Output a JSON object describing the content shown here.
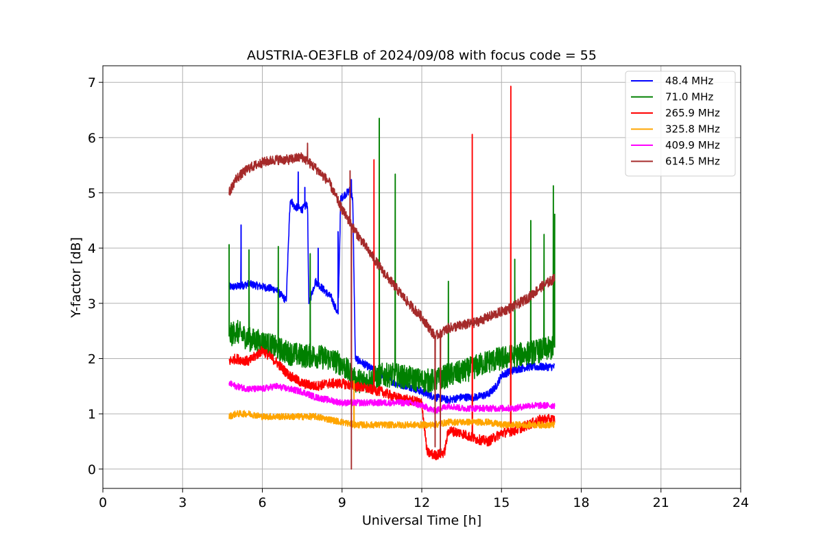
{
  "chart_data": {
    "type": "line",
    "title": "AUSTRIA-OE3FLB of 2024/09/08 with focus code = 55",
    "xlabel": "Universal Time [h]",
    "ylabel": "Y-factor [dB]",
    "xlim": [
      0,
      24
    ],
    "ylim": [
      -0.35,
      7.3
    ],
    "xticks": [
      0,
      3,
      6,
      9,
      12,
      15,
      18,
      21,
      24
    ],
    "yticks": [
      0,
      1,
      2,
      3,
      4,
      5,
      6,
      7
    ],
    "grid": true,
    "legend_position": "top-right",
    "series": [
      {
        "name": " 48.4 MHz",
        "color": "#0000ff",
        "x": [
          4.75,
          5.0,
          5.5,
          6.0,
          6.5,
          6.9,
          7.05,
          7.2,
          7.5,
          7.7,
          7.75,
          8.0,
          8.3,
          8.6,
          8.85,
          8.95,
          9.3,
          9.4,
          9.5,
          10.0,
          10.5,
          11.0,
          11.5,
          12.0,
          12.5,
          13.0,
          13.5,
          14.0,
          14.5,
          14.8,
          15.0,
          15.5,
          16.0,
          16.5,
          17.0
        ],
        "y": [
          3.3,
          3.3,
          3.35,
          3.3,
          3.25,
          3.05,
          4.9,
          4.75,
          4.7,
          4.8,
          3.0,
          3.4,
          3.25,
          3.1,
          2.8,
          4.9,
          5.05,
          4.9,
          2.0,
          1.85,
          1.7,
          1.55,
          1.5,
          1.4,
          1.3,
          1.25,
          1.3,
          1.3,
          1.35,
          1.5,
          1.7,
          1.8,
          1.85,
          1.85,
          1.85
        ],
        "spikes": [
          [
            5.2,
            4.42
          ],
          [
            7.35,
            5.38
          ],
          [
            7.6,
            5.1
          ],
          [
            8.1,
            4.0
          ],
          [
            8.85,
            4.3
          ],
          [
            9.35,
            5.24
          ]
        ]
      },
      {
        "name": " 71.0 MHz",
        "color": "#008000",
        "x": [
          4.75,
          5.0,
          5.5,
          6.0,
          6.5,
          7.0,
          7.5,
          8.0,
          8.5,
          9.0,
          9.5,
          10.0,
          10.5,
          11.0,
          11.5,
          12.0,
          12.5,
          13.0,
          13.5,
          14.0,
          14.5,
          15.0,
          15.5,
          16.0,
          16.5,
          17.0
        ],
        "y": [
          2.4,
          2.5,
          2.35,
          2.3,
          2.2,
          2.1,
          2.05,
          2.05,
          2.0,
          1.9,
          1.6,
          1.6,
          1.7,
          1.7,
          1.65,
          1.6,
          1.6,
          1.7,
          1.75,
          1.85,
          1.95,
          2.0,
          2.05,
          2.1,
          2.15,
          2.2
        ],
        "spikes": [
          [
            4.75,
            4.07
          ],
          [
            5.5,
            3.97
          ],
          [
            6.6,
            4.03
          ],
          [
            7.8,
            3.9
          ],
          [
            10.4,
            6.35
          ],
          [
            11.0,
            5.34
          ],
          [
            13.0,
            3.4
          ],
          [
            15.5,
            3.8
          ],
          [
            16.1,
            4.5
          ],
          [
            16.6,
            4.25
          ],
          [
            16.95,
            5.13
          ],
          [
            17.0,
            4.62
          ]
        ]
      },
      {
        "name": "265.9 MHz",
        "color": "#ff0000",
        "x": [
          4.75,
          5.0,
          5.5,
          6.0,
          6.5,
          7.0,
          7.5,
          8.0,
          8.5,
          9.0,
          9.5,
          10.0,
          10.5,
          11.0,
          11.5,
          12.0,
          12.2,
          12.5,
          12.85,
          13.0,
          13.5,
          14.0,
          14.5,
          15.0,
          15.5,
          16.0,
          16.5,
          17.0
        ],
        "y": [
          1.95,
          2.0,
          1.95,
          2.15,
          1.95,
          1.7,
          1.55,
          1.5,
          1.55,
          1.55,
          1.5,
          1.45,
          1.4,
          1.3,
          1.25,
          1.2,
          0.3,
          0.25,
          0.3,
          0.7,
          0.65,
          0.55,
          0.5,
          0.65,
          0.7,
          0.8,
          0.9,
          0.9
        ],
        "spikes": [
          [
            10.2,
            5.6
          ],
          [
            13.9,
            6.06
          ],
          [
            15.35,
            6.93
          ]
        ]
      },
      {
        "name": "325.8 MHz",
        "color": "#ffa500",
        "x": [
          4.75,
          5.0,
          5.5,
          6.0,
          6.5,
          7.0,
          7.5,
          8.0,
          8.5,
          9.0,
          9.5,
          10.0,
          10.5,
          11.0,
          11.5,
          12.0,
          12.5,
          13.0,
          13.5,
          14.0,
          14.5,
          15.0,
          15.5,
          16.0,
          16.5,
          17.0
        ],
        "y": [
          0.95,
          1.0,
          1.0,
          0.95,
          0.95,
          0.95,
          0.95,
          0.95,
          0.9,
          0.85,
          0.8,
          0.8,
          0.8,
          0.8,
          0.8,
          0.8,
          0.8,
          0.85,
          0.85,
          0.85,
          0.85,
          0.8,
          0.8,
          0.8,
          0.8,
          0.8
        ],
        "spikes": [
          [
            9.45,
            1.6
          ]
        ]
      },
      {
        "name": "409.9 MHz",
        "color": "#ff00ff",
        "x": [
          4.75,
          5.0,
          5.5,
          6.0,
          6.5,
          7.0,
          7.5,
          8.0,
          8.5,
          9.0,
          9.5,
          10.0,
          10.5,
          11.0,
          11.5,
          12.0,
          12.5,
          13.0,
          13.5,
          14.0,
          14.5,
          15.0,
          15.5,
          16.0,
          16.5,
          17.0
        ],
        "y": [
          1.55,
          1.5,
          1.45,
          1.45,
          1.5,
          1.45,
          1.4,
          1.3,
          1.25,
          1.2,
          1.2,
          1.2,
          1.2,
          1.2,
          1.2,
          1.15,
          1.05,
          1.15,
          1.1,
          1.1,
          1.1,
          1.1,
          1.1,
          1.15,
          1.15,
          1.15
        ],
        "spikes": []
      },
      {
        "name": "614.5 MHz",
        "color": "#a52a2a",
        "x": [
          4.75,
          5.0,
          5.5,
          6.0,
          6.5,
          7.0,
          7.5,
          8.0,
          8.5,
          9.0,
          9.5,
          10.0,
          10.5,
          11.0,
          11.5,
          12.0,
          12.5,
          13.0,
          13.5,
          14.0,
          14.5,
          15.0,
          15.5,
          16.0,
          16.5,
          17.0
        ],
        "y": [
          5.0,
          5.25,
          5.45,
          5.55,
          5.6,
          5.6,
          5.65,
          5.45,
          5.2,
          4.7,
          4.3,
          3.95,
          3.6,
          3.3,
          3.0,
          2.75,
          2.4,
          2.55,
          2.6,
          2.65,
          2.75,
          2.85,
          2.95,
          3.1,
          3.3,
          3.45
        ],
        "spikes": [
          [
            7.7,
            5.9
          ],
          [
            9.3,
            5.4
          ]
        ],
        "dips": [
          [
            9.35,
            0.0
          ],
          [
            12.5,
            0.4
          ],
          [
            12.7,
            0.3
          ]
        ]
      }
    ]
  }
}
